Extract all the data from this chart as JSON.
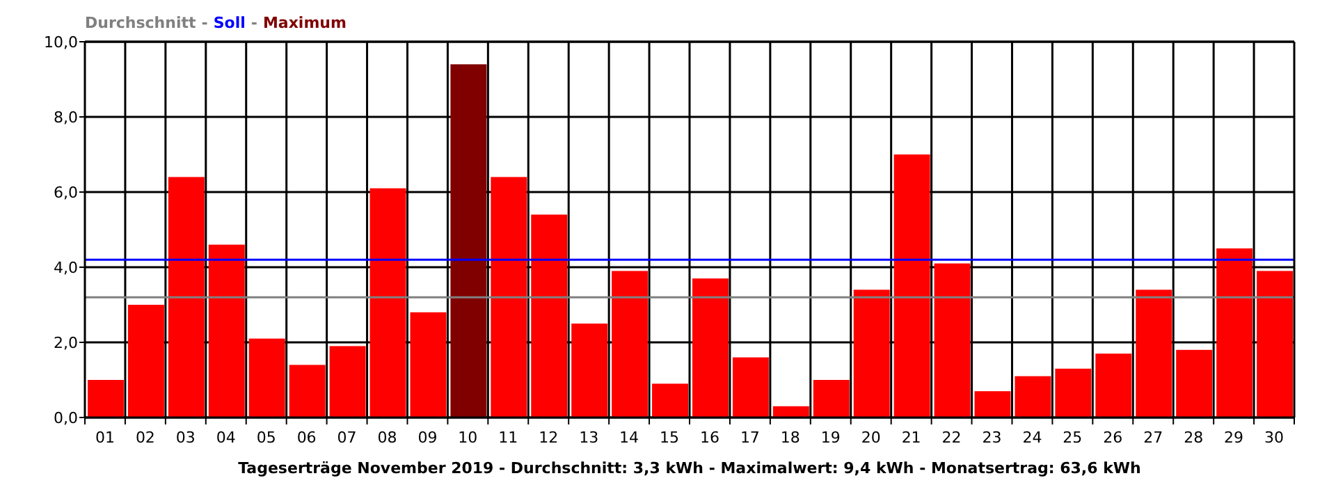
{
  "chart_data": {
    "type": "bar",
    "xlabel": "Tageserträge November 2019 - Durchschnitt: 3,3 kWh - Maximalwert: 9,4 kWh - Monatsertrag: 63,6 kWh",
    "categories": [
      "01",
      "02",
      "03",
      "04",
      "05",
      "06",
      "07",
      "08",
      "09",
      "10",
      "11",
      "12",
      "13",
      "14",
      "15",
      "16",
      "17",
      "18",
      "19",
      "20",
      "21",
      "22",
      "23",
      "24",
      "25",
      "26",
      "27",
      "28",
      "29",
      "30"
    ],
    "values": [
      1.0,
      3.0,
      6.4,
      4.6,
      2.1,
      1.4,
      1.9,
      6.1,
      2.8,
      9.4,
      6.4,
      5.4,
      2.5,
      3.9,
      0.9,
      3.7,
      1.6,
      0.3,
      1.0,
      3.4,
      7.0,
      4.1,
      0.7,
      1.1,
      1.3,
      1.7,
      3.4,
      1.8,
      4.5,
      3.9
    ],
    "colors": [
      "#ff0000",
      "#ff0000",
      "#ff0000",
      "#ff0000",
      "#ff0000",
      "#ff0000",
      "#ff0000",
      "#ff0000",
      "#ff0000",
      "#800000",
      "#ff0000",
      "#ff0000",
      "#ff0000",
      "#ff0000",
      "#ff0000",
      "#ff0000",
      "#ff0000",
      "#ff0000",
      "#ff0000",
      "#ff0000",
      "#ff0000",
      "#ff0000",
      "#ff0000",
      "#ff0000",
      "#ff0000",
      "#ff0000",
      "#ff0000",
      "#ff0000",
      "#ff0000",
      "#ff0000"
    ],
    "ylim": [
      0,
      10
    ],
    "yticks": [
      {
        "value": 0,
        "label": "0,0"
      },
      {
        "value": 2,
        "label": "2,0"
      },
      {
        "value": 4,
        "label": "4,0"
      },
      {
        "value": 6,
        "label": "6,0"
      },
      {
        "value": 8,
        "label": "8,0"
      },
      {
        "value": 10,
        "label": "10,0"
      }
    ],
    "grid": true,
    "legend": "top left",
    "ref_lines": [
      {
        "axis": "y",
        "value": 3.2,
        "label": "Durchschnitt",
        "color": "#808080"
      },
      {
        "axis": "y",
        "value": 4.2,
        "label": "Soll",
        "color": "#0000ff"
      }
    ],
    "annotations": [
      "-",
      "-",
      "Maximum"
    ]
  }
}
